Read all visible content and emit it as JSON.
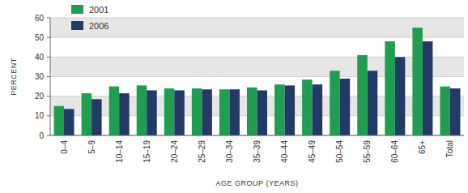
{
  "chart_data": {
    "type": "bar",
    "categories": [
      "0–4",
      "5–9",
      "10–14",
      "15–19",
      "20–24",
      "25–29",
      "30–34",
      "35–39",
      "40–44",
      "45–49",
      "50–54",
      "55–59",
      "60–64",
      "65+",
      "Total"
    ],
    "series": [
      {
        "name": "2001",
        "color": "#1f9e52",
        "values": [
          15,
          21.5,
          25,
          25.5,
          24,
          24,
          23.5,
          24.5,
          26,
          28.5,
          33,
          41,
          48,
          55,
          25
        ]
      },
      {
        "name": "2006",
        "color": "#243a66",
        "values": [
          13.5,
          18.5,
          21.5,
          23,
          23,
          23.5,
          23.5,
          23,
          25.5,
          26,
          29,
          33,
          40,
          48,
          24
        ]
      }
    ],
    "x_label": "AGE GROUP (YEARS)",
    "y_label": "PERCENT",
    "ylim": [
      0,
      60
    ],
    "yticks": [
      0,
      10,
      20,
      30,
      40,
      50,
      60
    ],
    "grid": true,
    "legend": "top-left"
  }
}
